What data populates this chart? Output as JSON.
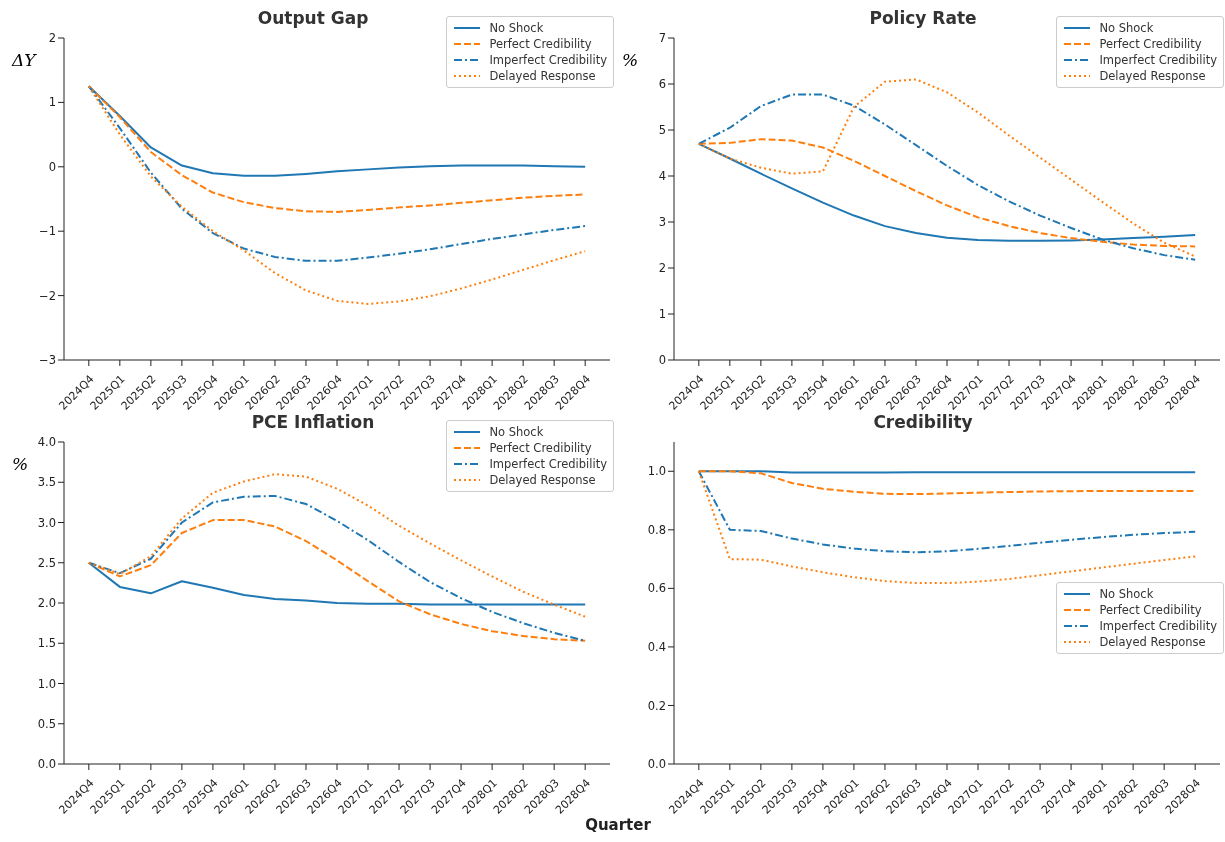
{
  "chart_data": [
    {
      "type": "line",
      "title": "Output Gap",
      "ylabel": "ΔY",
      "legend": "top right",
      "grid": false,
      "categories": [
        "2024Q4",
        "2025Q1",
        "2025Q2",
        "2025Q3",
        "2025Q4",
        "2026Q1",
        "2026Q2",
        "2026Q3",
        "2026Q4",
        "2027Q1",
        "2027Q2",
        "2027Q3",
        "2027Q4",
        "2028Q1",
        "2028Q2",
        "2028Q3",
        "2028Q4"
      ],
      "ylim": [
        -3,
        2
      ],
      "yticks": [
        {
          "value": -3,
          "label": "−3"
        },
        {
          "value": -2,
          "label": "−2"
        },
        {
          "value": -1,
          "label": "−1"
        },
        0,
        1,
        2
      ],
      "series": [
        {
          "name": "No Shock",
          "color": "#1f77b4",
          "line_style": "solid",
          "values": [
            1.25,
            0.79,
            0.3,
            0.02,
            -0.1,
            -0.14,
            -0.14,
            -0.11,
            -0.07,
            -0.04,
            -0.01,
            0.01,
            0.02,
            0.02,
            0.02,
            0.01,
            0.0
          ]
        },
        {
          "name": "Perfect Credibility",
          "color": "#ff7f0e",
          "line_style": "dashed",
          "values": [
            1.25,
            0.77,
            0.23,
            -0.13,
            -0.4,
            -0.55,
            -0.64,
            -0.69,
            -0.7,
            -0.67,
            -0.63,
            -0.6,
            -0.56,
            -0.52,
            -0.48,
            -0.45,
            -0.43
          ]
        },
        {
          "name": "Imperfect Credibility",
          "color": "#1f77b4",
          "line_style": "dashdot",
          "values": [
            1.25,
            0.6,
            -0.09,
            -0.65,
            -1.03,
            -1.27,
            -1.4,
            -1.46,
            -1.46,
            -1.41,
            -1.35,
            -1.28,
            -1.2,
            -1.12,
            -1.05,
            -0.98,
            -0.92
          ]
        },
        {
          "name": "Delayed Response",
          "color": "#ff7f0e",
          "line_style": "dotted",
          "values": [
            1.25,
            0.5,
            -0.15,
            -0.62,
            -1.0,
            -1.3,
            -1.65,
            -1.92,
            -2.08,
            -2.13,
            -2.09,
            -2.01,
            -1.89,
            -1.75,
            -1.6,
            -1.45,
            -1.31
          ]
        }
      ]
    },
    {
      "type": "line",
      "title": "Policy Rate",
      "ylabel": "%",
      "legend": "top right",
      "grid": false,
      "categories": [
        "2024Q4",
        "2025Q1",
        "2025Q2",
        "2025Q3",
        "2025Q4",
        "2026Q1",
        "2026Q2",
        "2026Q3",
        "2026Q4",
        "2027Q1",
        "2027Q2",
        "2027Q3",
        "2027Q4",
        "2028Q1",
        "2028Q2",
        "2028Q3",
        "2028Q4"
      ],
      "ylim": [
        0,
        7
      ],
      "yticks": [
        0,
        1,
        2,
        3,
        4,
        5,
        6,
        7
      ],
      "series": [
        {
          "name": "No Shock",
          "color": "#1f77b4",
          "line_style": "solid",
          "values": [
            4.7,
            4.38,
            4.05,
            3.73,
            3.42,
            3.14,
            2.91,
            2.76,
            2.66,
            2.61,
            2.59,
            2.59,
            2.6,
            2.62,
            2.65,
            2.68,
            2.72
          ]
        },
        {
          "name": "Perfect Credibility",
          "color": "#ff7f0e",
          "line_style": "dashed",
          "values": [
            4.7,
            4.72,
            4.8,
            4.77,
            4.62,
            4.33,
            4.0,
            3.67,
            3.36,
            3.1,
            2.91,
            2.76,
            2.65,
            2.57,
            2.51,
            2.48,
            2.47
          ]
        },
        {
          "name": "Imperfect Credibility",
          "color": "#1f77b4",
          "line_style": "dashdot",
          "values": [
            4.7,
            5.05,
            5.52,
            5.77,
            5.77,
            5.53,
            5.12,
            4.67,
            4.22,
            3.8,
            3.45,
            3.14,
            2.87,
            2.62,
            2.43,
            2.28,
            2.18
          ]
        },
        {
          "name": "Delayed Response",
          "color": "#ff7f0e",
          "line_style": "dotted",
          "values": [
            4.7,
            4.38,
            4.18,
            4.05,
            4.1,
            5.5,
            6.05,
            6.1,
            5.82,
            5.38,
            4.88,
            4.4,
            3.92,
            3.44,
            2.97,
            2.55,
            2.25
          ]
        }
      ]
    },
    {
      "type": "line",
      "title": "PCE Inflation",
      "ylabel": "%",
      "xlabel": "Quarter",
      "legend": "top right",
      "grid": false,
      "categories": [
        "2024Q4",
        "2025Q1",
        "2025Q2",
        "2025Q3",
        "2025Q4",
        "2026Q1",
        "2026Q2",
        "2026Q3",
        "2026Q4",
        "2027Q1",
        "2027Q2",
        "2027Q3",
        "2027Q4",
        "2028Q1",
        "2028Q2",
        "2028Q3",
        "2028Q4"
      ],
      "ylim": [
        0,
        4
      ],
      "yticks": [
        {
          "value": 0,
          "label": "0.0"
        },
        0.5,
        {
          "value": 1,
          "label": "1.0"
        },
        1.5,
        {
          "value": 2,
          "label": "2.0"
        },
        2.5,
        {
          "value": 3,
          "label": "3.0"
        },
        3.5,
        {
          "value": 4,
          "label": "4.0"
        }
      ],
      "series": [
        {
          "name": "No Shock",
          "color": "#1f77b4",
          "line_style": "solid",
          "values": [
            2.5,
            2.2,
            2.12,
            2.27,
            2.19,
            2.1,
            2.05,
            2.03,
            2.0,
            1.99,
            1.99,
            1.98,
            1.98,
            1.98,
            1.98,
            1.98,
            1.98
          ]
        },
        {
          "name": "Perfect Credibility",
          "color": "#ff7f0e",
          "line_style": "dashed",
          "values": [
            2.5,
            2.33,
            2.47,
            2.87,
            3.03,
            3.03,
            2.95,
            2.77,
            2.53,
            2.27,
            2.02,
            1.86,
            1.74,
            1.65,
            1.59,
            1.55,
            1.53
          ]
        },
        {
          "name": "Imperfect Credibility",
          "color": "#1f77b4",
          "line_style": "dashdot",
          "values": [
            2.5,
            2.37,
            2.55,
            3.0,
            3.25,
            3.32,
            3.33,
            3.23,
            3.02,
            2.78,
            2.51,
            2.26,
            2.06,
            1.89,
            1.75,
            1.63,
            1.53
          ]
        },
        {
          "name": "Delayed Response",
          "color": "#ff7f0e",
          "line_style": "dotted",
          "values": [
            2.5,
            2.36,
            2.58,
            3.05,
            3.37,
            3.51,
            3.6,
            3.57,
            3.42,
            3.21,
            2.96,
            2.74,
            2.53,
            2.33,
            2.14,
            1.98,
            1.83
          ]
        }
      ]
    },
    {
      "type": "line",
      "title": "Credibility",
      "legend": "right",
      "grid": false,
      "categories": [
        "2024Q4",
        "2025Q1",
        "2025Q2",
        "2025Q3",
        "2025Q4",
        "2026Q1",
        "2026Q2",
        "2026Q3",
        "2026Q4",
        "2027Q1",
        "2027Q2",
        "2027Q3",
        "2027Q4",
        "2028Q1",
        "2028Q2",
        "2028Q3",
        "2028Q4"
      ],
      "ylim": [
        0,
        1.1
      ],
      "yticks": [
        {
          "value": 0,
          "label": "0.0"
        },
        0.2,
        0.4,
        0.6,
        0.8,
        {
          "value": 1,
          "label": "1.0"
        }
      ],
      "series": [
        {
          "name": "No Shock",
          "color": "#1f77b4",
          "line_style": "solid",
          "values": [
            1.0,
            1.0,
            1.0,
            0.996,
            0.996,
            0.996,
            0.996,
            0.997,
            0.997,
            0.997,
            0.997,
            0.997,
            0.997,
            0.997,
            0.997,
            0.997,
            0.997
          ]
        },
        {
          "name": "Perfect Credibility",
          "color": "#ff7f0e",
          "line_style": "dashed",
          "values": [
            1.0,
            1.0,
            0.993,
            0.96,
            0.94,
            0.93,
            0.923,
            0.922,
            0.924,
            0.927,
            0.929,
            0.931,
            0.932,
            0.933,
            0.933,
            0.933,
            0.933
          ]
        },
        {
          "name": "Imperfect Credibility",
          "color": "#1f77b4",
          "line_style": "dashdot",
          "values": [
            1.0,
            0.8,
            0.796,
            0.77,
            0.75,
            0.736,
            0.727,
            0.723,
            0.727,
            0.735,
            0.745,
            0.756,
            0.766,
            0.775,
            0.783,
            0.789,
            0.793
          ]
        },
        {
          "name": "Delayed Response",
          "color": "#ff7f0e",
          "line_style": "dotted",
          "values": [
            1.0,
            0.7,
            0.698,
            0.675,
            0.655,
            0.638,
            0.625,
            0.618,
            0.618,
            0.623,
            0.632,
            0.645,
            0.658,
            0.671,
            0.684,
            0.697,
            0.709
          ]
        }
      ]
    }
  ]
}
